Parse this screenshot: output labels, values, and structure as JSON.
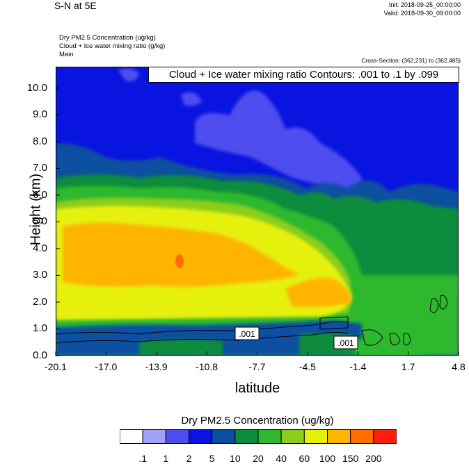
{
  "header": {
    "title": "S-N at 5E",
    "init": "Init: 2018-09-25_00:00:00",
    "valid": "Valid: 2018-09-30_09:00:00",
    "var1": "Dry PM2.5 Concentration   (ug/kg)",
    "var2": "Cloud + Ice water mixing ratio   (g/kg)",
    "var3": "Main",
    "cross_section": "Cross-Section: (362,231) to (362,485)"
  },
  "chart_data": {
    "type": "heatmap",
    "title": "S-N at 5E",
    "xlabel": "latitude",
    "ylabel": "Height (km)",
    "xlim": [
      -20.1,
      4.8
    ],
    "ylim": [
      0.0,
      10.8
    ],
    "x_ticks": [
      "-20.1",
      "-17.0",
      "-13.9",
      "-10.8",
      "-7.7",
      "-4.5",
      "-1.4",
      "1.7",
      "4.8"
    ],
    "y_ticks": [
      "0.0",
      "1.0",
      "2.0",
      "3.0",
      "4.0",
      "5.0",
      "6.0",
      "7.0",
      "8.0",
      "9.0",
      "10.0"
    ],
    "y_tick_values": [
      0,
      1,
      2,
      3,
      4,
      5,
      6,
      7,
      8,
      9,
      10
    ],
    "contour_title": "Cloud + Ice water mixing ratio Contours: .001 to .1 by .099",
    "contour_labels": [
      ".001",
      ".001"
    ],
    "colorbar": {
      "title": "Dry PM2.5 Concentration  (ug/kg)",
      "labels": [
        ".1",
        "1",
        "2",
        "5",
        "10",
        "20",
        "40",
        "60",
        "100",
        "150",
        "200"
      ],
      "colors": [
        "#ffffff",
        "#a0a0f7",
        "#4d4df0",
        "#0a14e0",
        "#0a4fa0",
        "#0a8c3c",
        "#2eb82e",
        "#8ccd1e",
        "#e6f00a",
        "#ffb400",
        "#ff6e00",
        "#ff1e0a"
      ]
    }
  }
}
